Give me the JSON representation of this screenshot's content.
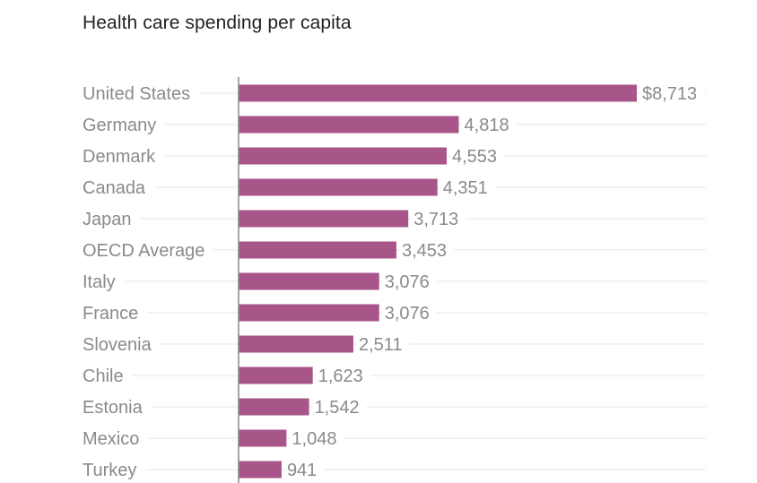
{
  "chart_data": {
    "type": "bar",
    "orientation": "horizontal",
    "title": "Health care spending per capita",
    "categories": [
      "United States",
      "Germany",
      "Denmark",
      "Canada",
      "Japan",
      "OECD Average",
      "Italy",
      "France",
      "Slovenia",
      "Chile",
      "Estonia",
      "Mexico",
      "Turkey"
    ],
    "values": [
      8713,
      4818,
      4553,
      4351,
      3713,
      3453,
      3076,
      3076,
      2511,
      1623,
      1542,
      1048,
      941
    ],
    "value_labels": [
      "$8,713",
      "4,818",
      "4,553",
      "4,351",
      "3,713",
      "3,453",
      "3,076",
      "3,076",
      "2,511",
      "1,623",
      "1,542",
      "1,048",
      "941"
    ],
    "xlim": [
      0,
      9500
    ],
    "grid": true,
    "bar_color": "#a8568a",
    "gridline_color": "#e6e6e6",
    "axis_color": "#888888"
  }
}
